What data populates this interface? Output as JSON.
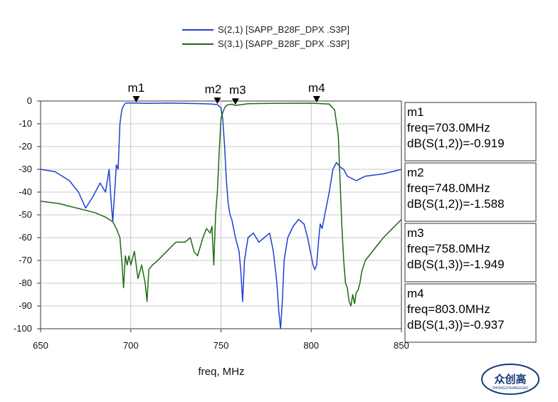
{
  "legend": [
    {
      "label": "S(2,1) [SAPP_B28F_DPX .S3P]",
      "color": "#1f3fd4"
    },
    {
      "label": "S(3,1) [SAPP_B28F_DPX .S3P]",
      "color": "#1e6b12"
    }
  ],
  "watermark": {
    "text": "众创高",
    "sub": "ZHONGCHUANGGAO"
  },
  "chart_data": {
    "type": "line",
    "xlabel": "freq, MHz",
    "ylabel": "",
    "xlim": [
      650,
      850
    ],
    "ylim": [
      -100,
      0
    ],
    "xticks": [
      650,
      700,
      750,
      800,
      850
    ],
    "yticks": [
      0,
      -10,
      -20,
      -30,
      -40,
      -50,
      -60,
      -70,
      -80,
      -90,
      -100
    ],
    "grid": true,
    "legend_position": "top-center",
    "series": [
      {
        "name": "S(2,1) [SAPP_B28F_DPX .S3P]",
        "color": "#1f3fd4",
        "x": [
          650,
          658,
          666,
          671,
          675,
          679,
          683,
          686,
          688,
          689,
          690,
          691,
          692,
          693,
          694,
          695,
          696,
          697,
          698,
          700,
          703,
          710,
          720,
          730,
          740,
          745,
          748,
          750,
          751,
          752,
          753,
          754,
          755,
          756,
          757,
          758,
          759,
          760,
          761,
          762,
          763,
          765,
          768,
          771,
          774,
          777,
          779,
          781,
          782,
          783,
          784,
          785,
          787,
          790,
          793,
          796,
          798,
          800,
          801,
          802,
          803,
          804,
          805,
          806,
          808,
          810,
          812,
          814,
          816,
          818,
          820,
          825,
          830,
          840,
          850
        ],
        "y": [
          -30,
          -31,
          -35,
          -40,
          -47,
          -42,
          -36,
          -40,
          -30,
          -43,
          -53,
          -41,
          -28,
          -30,
          -10,
          -4,
          -2,
          -1,
          -0.8,
          -0.9,
          -0.919,
          -1.0,
          -0.9,
          -1.0,
          -1.2,
          -1.3,
          -1.588,
          -3,
          -8,
          -20,
          -35,
          -45,
          -50,
          -52,
          -56,
          -60,
          -63,
          -66,
          -75,
          -88,
          -70,
          -60,
          -58,
          -62,
          -60,
          -58,
          -66,
          -80,
          -92,
          -100,
          -88,
          -70,
          -60,
          -55,
          -52,
          -54,
          -60,
          -68,
          -72,
          -74,
          -72,
          -62,
          -54,
          -56,
          -48,
          -40,
          -30,
          -27,
          -29,
          -30,
          -33,
          -35,
          -33,
          -32,
          -30
        ]
      },
      {
        "name": "S(3,1) [SAPP_B28F_DPX .S3P]",
        "color": "#1e6b12",
        "x": [
          650,
          660,
          670,
          680,
          686,
          690,
          692,
          694,
          695,
          696,
          697,
          698,
          699,
          700,
          702,
          704,
          706,
          708,
          709,
          710,
          712,
          715,
          720,
          725,
          730,
          733,
          735,
          737,
          740,
          742,
          744,
          745,
          746,
          747,
          748,
          749,
          750,
          751,
          752,
          753,
          754,
          756,
          758,
          765,
          780,
          800,
          810,
          813,
          815,
          816,
          817,
          818,
          819,
          820,
          821,
          822,
          823,
          824,
          825,
          826,
          827,
          828,
          830,
          835,
          840,
          845,
          850
        ],
        "y": [
          -44,
          -45,
          -47,
          -49,
          -51,
          -53,
          -56,
          -60,
          -70,
          -82,
          -68,
          -72,
          -68,
          -72,
          -66,
          -78,
          -72,
          -80,
          -88,
          -74,
          -72,
          -70,
          -66,
          -62,
          -62,
          -60,
          -66,
          -68,
          -60,
          -56,
          -58,
          -55,
          -72,
          -50,
          -40,
          -22,
          -8,
          -5,
          -3,
          -2,
          -1.6,
          -1.4,
          -1.949,
          -1.2,
          -1.0,
          -0.937,
          -1.3,
          -4,
          -15,
          -35,
          -55,
          -70,
          -80,
          -82,
          -88,
          -90,
          -85,
          -89,
          -84,
          -83,
          -80,
          -75,
          -70,
          -65,
          -60,
          -56,
          -52
        ]
      }
    ],
    "markers": [
      {
        "name": "m1",
        "freq": 703.0,
        "value": -0.919,
        "line1": "m1",
        "line2": "freq=703.0MHz",
        "line3": "dB(S(1,2))=-0.919"
      },
      {
        "name": "m2",
        "freq": 748.0,
        "value": -1.588,
        "line1": "m2",
        "line2": "freq=748.0MHz",
        "line3": "dB(S(1,2))=-1.588"
      },
      {
        "name": "m3",
        "freq": 758.0,
        "value": -1.949,
        "line1": "m3",
        "line2": "freq=758.0MHz",
        "line3": "dB(S(1,3))=-1.949"
      },
      {
        "name": "m4",
        "freq": 803.0,
        "value": -0.937,
        "line1": "m4",
        "line2": "freq=803.0MHz",
        "line3": "dB(S(1,3))=-0.937"
      }
    ]
  }
}
